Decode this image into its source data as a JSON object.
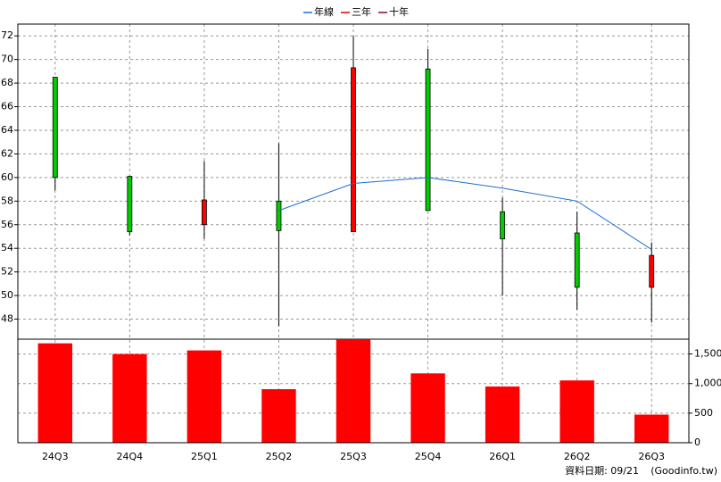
{
  "chart_data": {
    "type": "candlestick",
    "categories": [
      "24Q3",
      "24Q4",
      "25Q1",
      "25Q2",
      "25Q3",
      "25Q4",
      "26Q1",
      "26Q2",
      "26Q3"
    ],
    "open": [
      68.5,
      60.1,
      56.0,
      58.0,
      55.4,
      69.2,
      57.1,
      55.3,
      50.7
    ],
    "high": [
      68.5,
      60.1,
      61.4,
      62.9,
      72.0,
      70.9,
      58.3,
      57.1,
      54.5
    ],
    "low": [
      58.9,
      55.1,
      54.8,
      47.4,
      55.4,
      57.2,
      50.0,
      48.8,
      47.7
    ],
    "close": [
      60.0,
      55.4,
      58.1,
      55.5,
      69.3,
      57.2,
      54.8,
      50.7,
      53.4
    ],
    "up_color": "#ff0000",
    "down_color": "#00cc00",
    "series": [
      {
        "name": "年線",
        "color": "#1f6fd0",
        "values": [
          null,
          null,
          null,
          57.2,
          59.5,
          60.0,
          59.1,
          58.0,
          53.9
        ]
      },
      {
        "name": "三年",
        "color": "#e00000",
        "values": [
          null,
          null,
          null,
          null,
          null,
          null,
          null,
          null,
          null
        ]
      },
      {
        "name": "十年",
        "color": "#900040",
        "values": [
          null,
          null,
          null,
          null,
          null,
          null,
          null,
          null,
          null
        ]
      }
    ],
    "ylim": [
      46.3,
      73.0
    ],
    "yticks": [
      48,
      50,
      52,
      54,
      56,
      58,
      60,
      62,
      64,
      66,
      68,
      70,
      72
    ],
    "volume": {
      "color": "#ff0000",
      "values": [
        1680,
        1500,
        1560,
        905,
        1740,
        1172,
        950,
        1053,
        475
      ],
      "ylim": [
        0,
        1750
      ],
      "yticks": [
        0,
        500,
        {
          "value": 1000,
          "label": "1,000"
        },
        {
          "value": 1500,
          "label": "1,500"
        }
      ]
    },
    "grid": true,
    "date_label": "資料日期: 09/21",
    "source": "(Goodinfo.tw)"
  }
}
